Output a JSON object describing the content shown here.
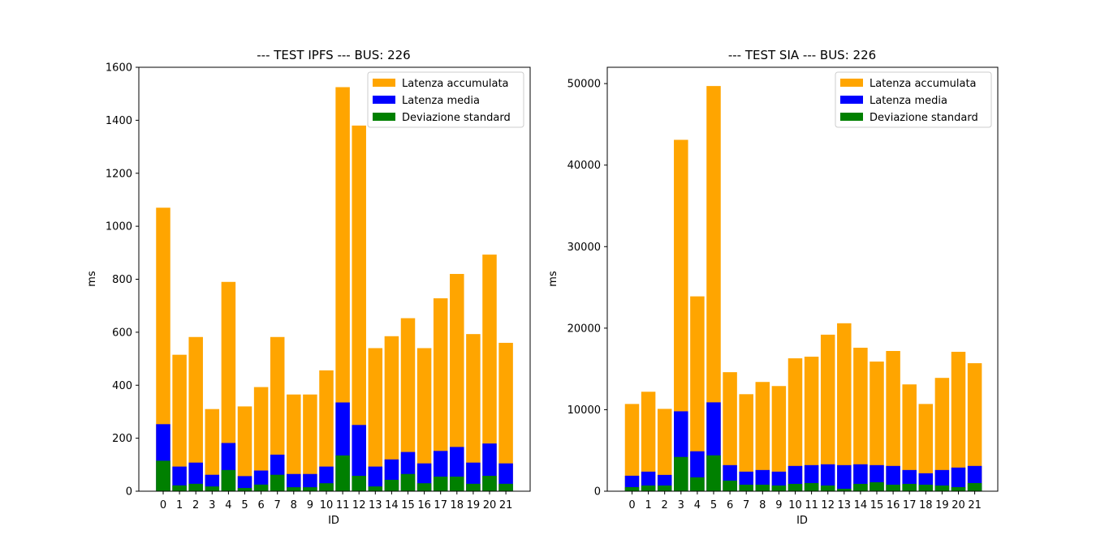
{
  "chart_data": [
    {
      "type": "bar",
      "title": "--- TEST IPFS --- BUS: 226",
      "xlabel": "ID",
      "ylabel": "ms",
      "ylim": [
        0,
        1600
      ],
      "yticks": [
        0,
        200,
        400,
        600,
        800,
        1000,
        1200,
        1400,
        1600
      ],
      "categories": [
        "0",
        "1",
        "2",
        "3",
        "4",
        "5",
        "6",
        "7",
        "8",
        "9",
        "10",
        "11",
        "12",
        "13",
        "14",
        "15",
        "16",
        "17",
        "18",
        "19",
        "20",
        "21"
      ],
      "legend_position": "top-right",
      "series": [
        {
          "name": "Latenza accumulata",
          "color": "#ffa500",
          "values": [
            1070,
            515,
            582,
            310,
            790,
            320,
            393,
            582,
            365,
            365,
            456,
            1525,
            1380,
            540,
            585,
            653,
            540,
            728,
            820,
            593,
            893,
            560
          ]
        },
        {
          "name": "Latenza media",
          "color": "#0000ff",
          "values": [
            253,
            93,
            108,
            62,
            182,
            57,
            78,
            138,
            65,
            65,
            93,
            335,
            250,
            93,
            120,
            148,
            105,
            152,
            167,
            108,
            180,
            105
          ]
        },
        {
          "name": "Deviazione standard",
          "color": "#008000",
          "values": [
            115,
            22,
            28,
            18,
            80,
            12,
            25,
            62,
            15,
            15,
            30,
            135,
            58,
            18,
            43,
            65,
            30,
            55,
            55,
            28,
            58,
            28
          ]
        }
      ]
    },
    {
      "type": "bar",
      "title": "--- TEST SIA --- BUS: 226",
      "xlabel": "ID",
      "ylabel": "ms",
      "ylim": [
        0,
        52000
      ],
      "yticks": [
        0,
        10000,
        20000,
        30000,
        40000,
        50000
      ],
      "categories": [
        "0",
        "1",
        "2",
        "3",
        "4",
        "5",
        "6",
        "7",
        "8",
        "9",
        "10",
        "11",
        "12",
        "13",
        "14",
        "15",
        "16",
        "17",
        "18",
        "19",
        "20",
        "21"
      ],
      "legend_position": "top-right",
      "series": [
        {
          "name": "Latenza accumulata",
          "color": "#ffa500",
          "values": [
            10700,
            12200,
            10100,
            43100,
            23900,
            49700,
            14600,
            11900,
            13400,
            12900,
            16300,
            16500,
            19200,
            20600,
            17600,
            15900,
            17200,
            13100,
            10700,
            13900,
            17100,
            15700
          ]
        },
        {
          "name": "Latenza media",
          "color": "#0000ff",
          "values": [
            1900,
            2400,
            2000,
            9800,
            4900,
            10900,
            3200,
            2400,
            2600,
            2400,
            3100,
            3200,
            3300,
            3200,
            3300,
            3200,
            3100,
            2600,
            2200,
            2600,
            2900,
            3100
          ]
        },
        {
          "name": "Deviazione standard",
          "color": "#008000",
          "values": [
            500,
            700,
            700,
            4200,
            1700,
            4400,
            1300,
            800,
            800,
            700,
            900,
            1000,
            700,
            300,
            900,
            1100,
            800,
            900,
            800,
            700,
            500,
            1000
          ]
        }
      ]
    }
  ]
}
